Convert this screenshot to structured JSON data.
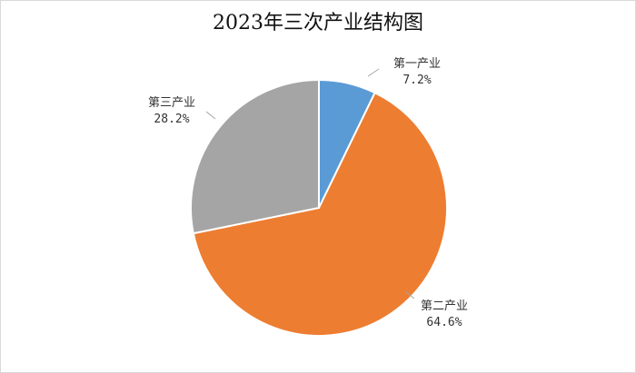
{
  "chart_data": {
    "type": "pie",
    "title": "2023年三次产业结构图",
    "categories": [
      "第一产业",
      "第二产业",
      "第三产业"
    ],
    "values": [
      7.2,
      64.6,
      28.2
    ],
    "value_labels": [
      "7.2%",
      "64.6%",
      "28.2%"
    ],
    "colors": [
      "#5b9bd5",
      "#ed7d31",
      "#a5a5a5"
    ],
    "start_angle_deg": 0,
    "direction": "clockwise",
    "legend": "none",
    "data_labels": "outside with leader lines"
  }
}
